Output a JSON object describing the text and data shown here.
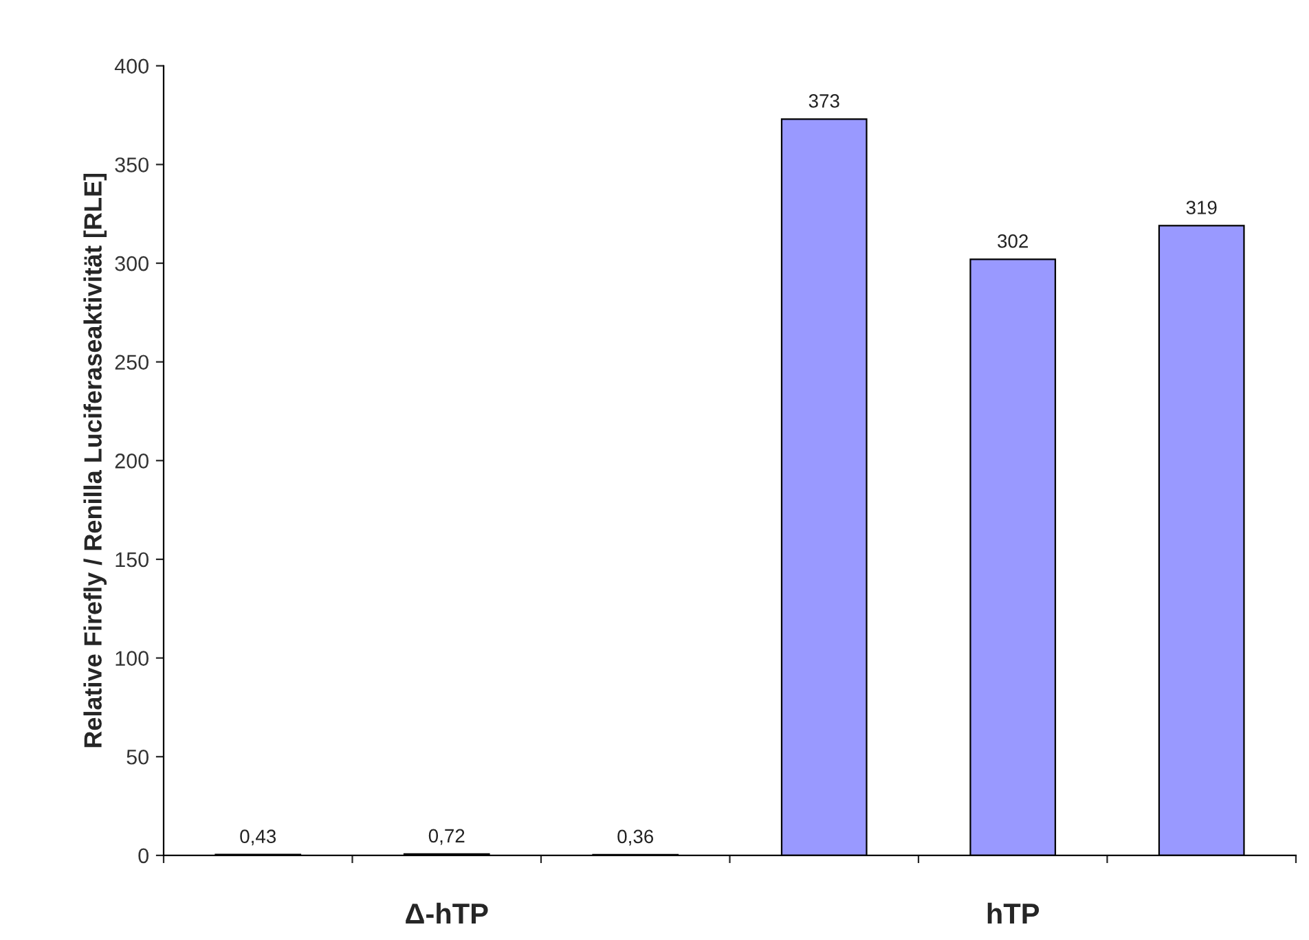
{
  "chart_data": {
    "type": "bar",
    "ylabel": "Relative Firefly / Renilla Luciferaseaktivität [RLE]",
    "categories": [
      null,
      null,
      null,
      null,
      null,
      null
    ],
    "series": [
      {
        "color": "#9999ff",
        "values": [
          0.43,
          0.72,
          0.36,
          373,
          302,
          319
        ],
        "value_labels": [
          "0,43",
          "0,72",
          "0,36",
          "373",
          "302",
          "319"
        ]
      }
    ],
    "annotations": [
      "Δ-hTP",
      "hTP"
    ],
    "ylim": [
      0,
      400
    ],
    "yticks": [
      0,
      50,
      100,
      150,
      200,
      250,
      300,
      350,
      400
    ],
    "grid": false,
    "legend": false
  }
}
